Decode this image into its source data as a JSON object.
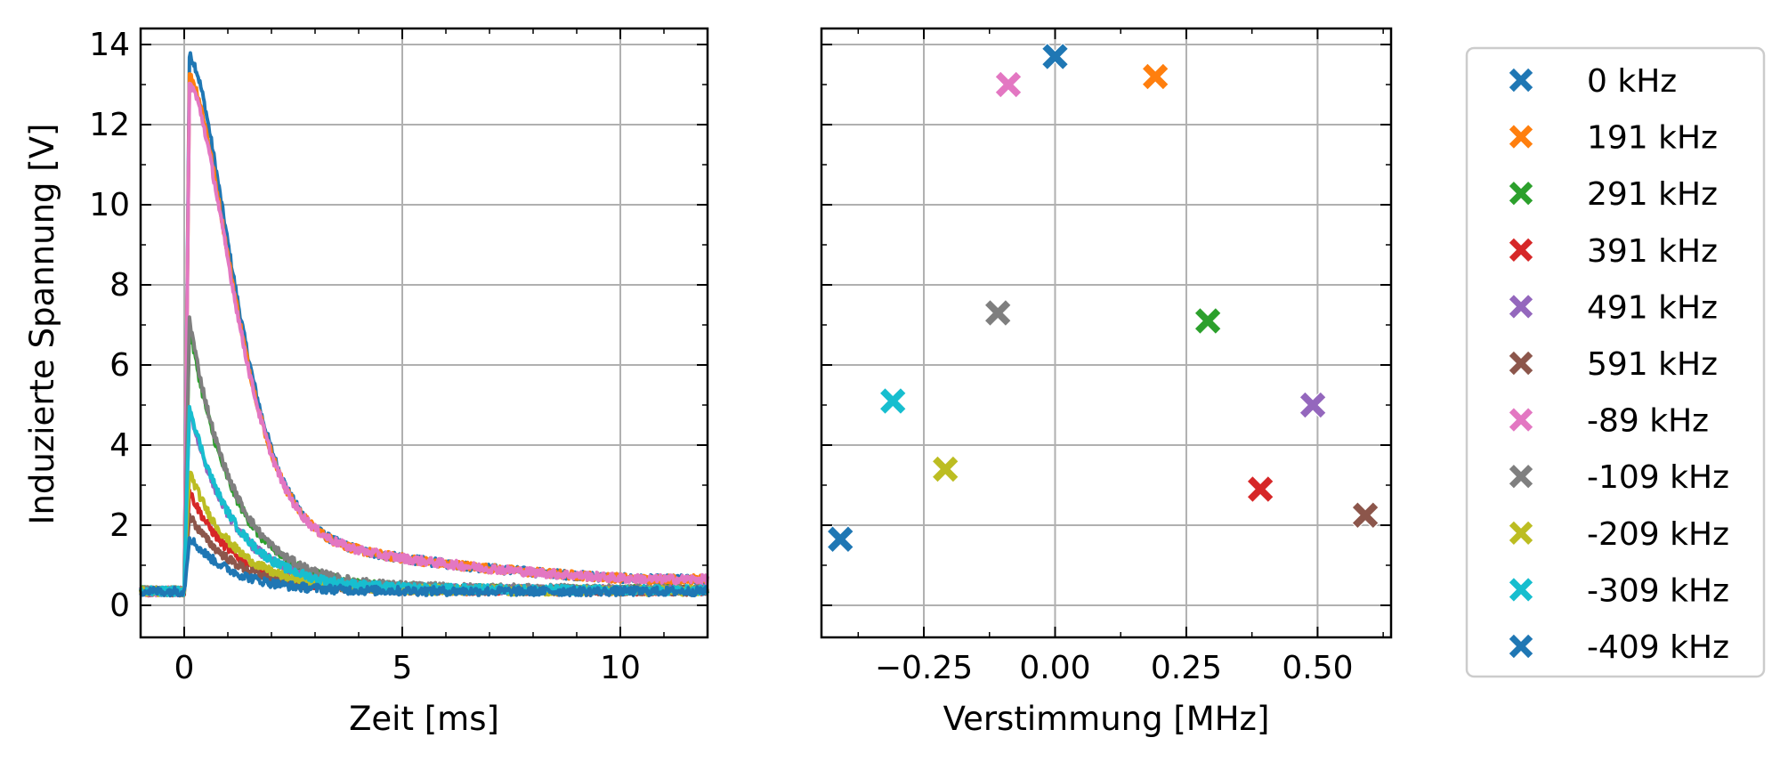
{
  "chart_data": [
    {
      "type": "line",
      "xlabel": "Zeit [ms]",
      "ylabel": "Induzierte Spannung [V]",
      "xlim": [
        -1,
        12
      ],
      "ylim": [
        -0.8,
        14.4
      ],
      "xticks": [
        0,
        5,
        10
      ],
      "yticks": [
        0,
        2,
        4,
        6,
        8,
        10,
        12,
        14
      ],
      "grid": true,
      "series": [
        {
          "name": "0 kHz",
          "color": "#1f77b4",
          "base": 0.35,
          "peak": 13.7,
          "tail": 0.7
        },
        {
          "name": "191 kHz",
          "color": "#ff7f0e",
          "base": 0.35,
          "peak": 13.2,
          "tail": 0.7
        },
        {
          "name": "291 kHz",
          "color": "#2ca02c",
          "base": 0.35,
          "peak": 7.1,
          "tail": 0.45
        },
        {
          "name": "391 kHz",
          "color": "#d62728",
          "base": 0.35,
          "peak": 2.9,
          "tail": 0.4
        },
        {
          "name": "491 kHz",
          "color": "#9467bd",
          "base": 0.35,
          "peak": 5.0,
          "tail": 0.45
        },
        {
          "name": "591 kHz",
          "color": "#8c564b",
          "base": 0.35,
          "peak": 2.3,
          "tail": 0.4
        },
        {
          "name": "-89 kHz",
          "color": "#e377c2",
          "base": 0.35,
          "peak": 13.0,
          "tail": 0.7
        },
        {
          "name": "-109 kHz",
          "color": "#7f7f7f",
          "base": 0.35,
          "peak": 7.3,
          "tail": 0.5
        },
        {
          "name": "-209 kHz",
          "color": "#bcbd22",
          "base": 0.35,
          "peak": 3.4,
          "tail": 0.4
        },
        {
          "name": "-309 kHz",
          "color": "#17becf",
          "base": 0.35,
          "peak": 5.1,
          "tail": 0.45
        },
        {
          "name": "-409 kHz",
          "color": "#1f77b4",
          "base": 0.35,
          "peak": 1.7,
          "tail": 0.35
        }
      ]
    },
    {
      "type": "scatter",
      "xlabel": "Verstimmung [MHz]",
      "ylabel": "",
      "xlim": [
        -0.445,
        0.64
      ],
      "ylim": [
        -0.8,
        14.4
      ],
      "xticks": [
        -0.25,
        0.0,
        0.25,
        0.5
      ],
      "xtick_labels": [
        "−0.25",
        "0.00",
        "0.25",
        "0.50"
      ],
      "yticks": [
        0,
        2,
        4,
        6,
        8,
        10,
        12,
        14
      ],
      "grid": true,
      "marker": "X",
      "points": [
        {
          "name": "0 kHz",
          "x": 0.0,
          "y": 13.7,
          "color": "#1f77b4"
        },
        {
          "name": "191 kHz",
          "x": 0.191,
          "y": 13.2,
          "color": "#ff7f0e"
        },
        {
          "name": "291 kHz",
          "x": 0.291,
          "y": 7.1,
          "color": "#2ca02c"
        },
        {
          "name": "391 kHz",
          "x": 0.391,
          "y": 2.9,
          "color": "#d62728"
        },
        {
          "name": "491 kHz",
          "x": 0.491,
          "y": 5.0,
          "color": "#9467bd"
        },
        {
          "name": "591 kHz",
          "x": 0.591,
          "y": 2.25,
          "color": "#8c564b"
        },
        {
          "name": "-89 kHz",
          "x": -0.089,
          "y": 13.0,
          "color": "#e377c2"
        },
        {
          "name": "-109 kHz",
          "x": -0.109,
          "y": 7.3,
          "color": "#7f7f7f"
        },
        {
          "name": "-209 kHz",
          "x": -0.209,
          "y": 3.4,
          "color": "#bcbd22"
        },
        {
          "name": "-309 kHz",
          "x": -0.309,
          "y": 5.1,
          "color": "#17becf"
        },
        {
          "name": "-409 kHz",
          "x": -0.409,
          "y": 1.65,
          "color": "#1f77b4"
        }
      ],
      "legend": {
        "placement": "right, outside",
        "entries": [
          {
            "label": "0 kHz",
            "color": "#1f77b4"
          },
          {
            "label": "191 kHz",
            "color": "#ff7f0e"
          },
          {
            "label": "291 kHz",
            "color": "#2ca02c"
          },
          {
            "label": "391 kHz",
            "color": "#d62728"
          },
          {
            "label": "491 kHz",
            "color": "#9467bd"
          },
          {
            "label": "591 kHz",
            "color": "#8c564b"
          },
          {
            "label": "-89 kHz",
            "color": "#e377c2"
          },
          {
            "label": "-109 kHz",
            "color": "#7f7f7f"
          },
          {
            "label": "-209 kHz",
            "color": "#bcbd22"
          },
          {
            "label": "-309 kHz",
            "color": "#17becf"
          },
          {
            "label": "-409 kHz",
            "color": "#1f77b4"
          }
        ]
      }
    }
  ]
}
